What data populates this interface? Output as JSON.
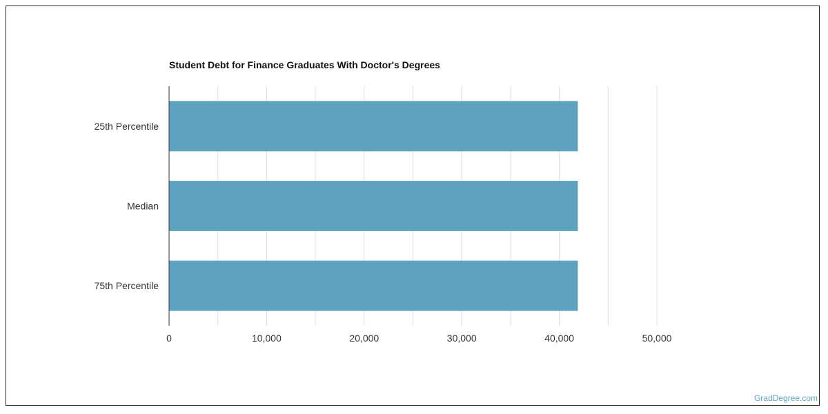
{
  "chart_data": {
    "type": "bar",
    "orientation": "horizontal",
    "title": "Student Debt for Finance Graduates With Doctor's Degrees",
    "categories": [
      "25th Percentile",
      "Median",
      "75th Percentile"
    ],
    "values": [
      41900,
      41900,
      41900
    ],
    "xlim": [
      0,
      50000
    ],
    "x_ticks": [
      0,
      10000,
      20000,
      30000,
      40000,
      50000
    ],
    "x_tick_labels": [
      "0",
      "10,000",
      "20,000",
      "30,000",
      "40,000",
      "50,000"
    ],
    "grid": true,
    "bar_color": "#5ea2bf",
    "gridline_color": "#dddddd"
  },
  "watermark": "GradDegree.com"
}
